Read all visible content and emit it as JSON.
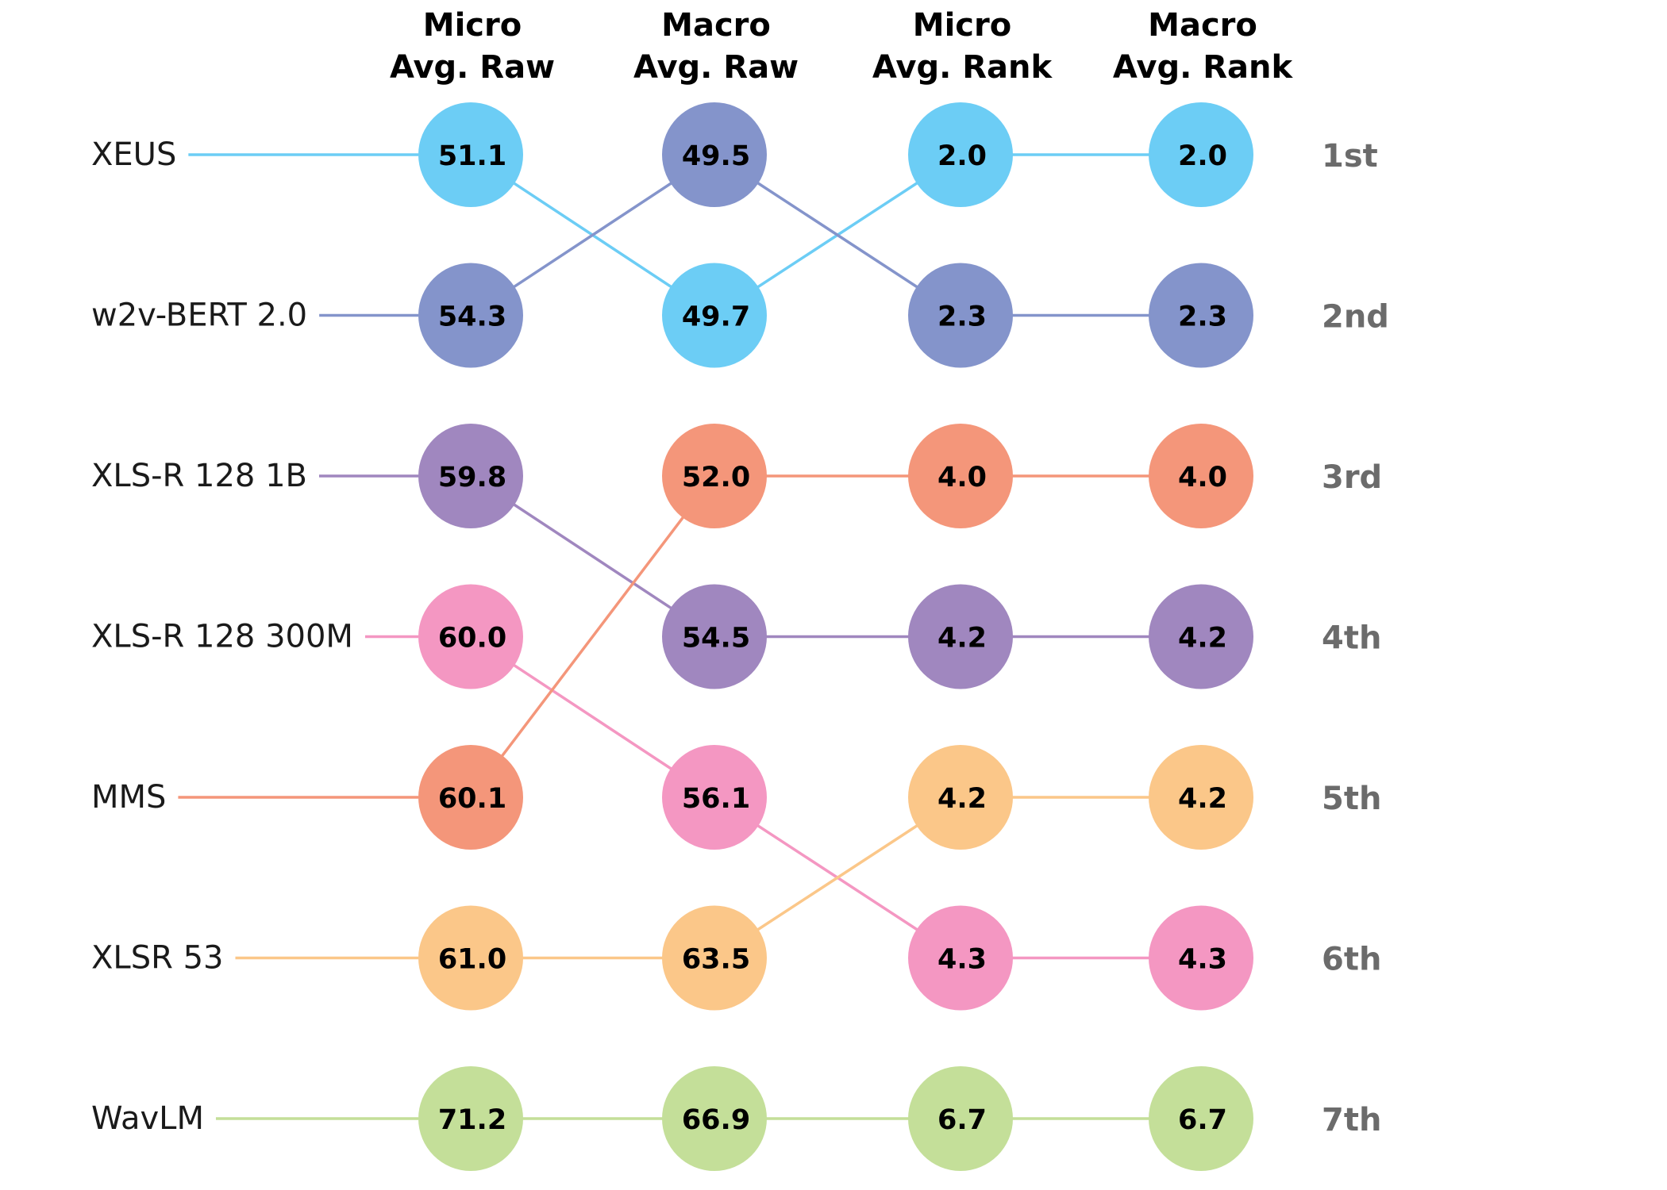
{
  "chart_data": {
    "type": "bump",
    "columns": [
      {
        "line1": "Micro",
        "line2": "Avg. Raw"
      },
      {
        "line1": "Macro",
        "line2": "Avg. Raw"
      },
      {
        "line1": "Micro",
        "line2": "Avg. Rank"
      },
      {
        "line1": "Macro",
        "line2": "Avg. Rank"
      }
    ],
    "rank_labels": [
      "1st",
      "2nd",
      "3rd",
      "4th",
      "5th",
      "6th",
      "7th"
    ],
    "colors": {
      "rank_label": "#6b6b6b",
      "text": "#000000"
    },
    "series": [
      {
        "name": "XEUS",
        "color": "#6ccdf5",
        "ranks": [
          1,
          2,
          1,
          1
        ],
        "values": [
          "51.1",
          "49.7",
          "2.0",
          "2.0"
        ]
      },
      {
        "name": "w2v-BERT 2.0",
        "color": "#8494cb",
        "ranks": [
          2,
          1,
          2,
          2
        ],
        "values": [
          "54.3",
          "49.5",
          "2.3",
          "2.3"
        ]
      },
      {
        "name": "XLS-R 128 1B",
        "color": "#a087bf",
        "ranks": [
          3,
          4,
          4,
          4
        ],
        "values": [
          "59.8",
          "54.5",
          "4.2",
          "4.2"
        ]
      },
      {
        "name": "XLS-R 128 300M",
        "color": "#f497c2",
        "ranks": [
          4,
          5,
          6,
          6
        ],
        "values": [
          "60.0",
          "56.1",
          "4.3",
          "4.3"
        ]
      },
      {
        "name": "MMS",
        "color": "#f4967a",
        "ranks": [
          5,
          3,
          3,
          3
        ],
        "values": [
          "60.1",
          "52.0",
          "4.0",
          "4.0"
        ]
      },
      {
        "name": "XLSR 53",
        "color": "#fbc789",
        "ranks": [
          6,
          6,
          5,
          5
        ],
        "values": [
          "61.0",
          "63.5",
          "4.2",
          "4.2"
        ]
      },
      {
        "name": "WavLM",
        "color": "#c4df99",
        "ranks": [
          7,
          7,
          7,
          7
        ],
        "values": [
          "71.2",
          "66.9",
          "6.7",
          "6.7"
        ]
      }
    ]
  }
}
